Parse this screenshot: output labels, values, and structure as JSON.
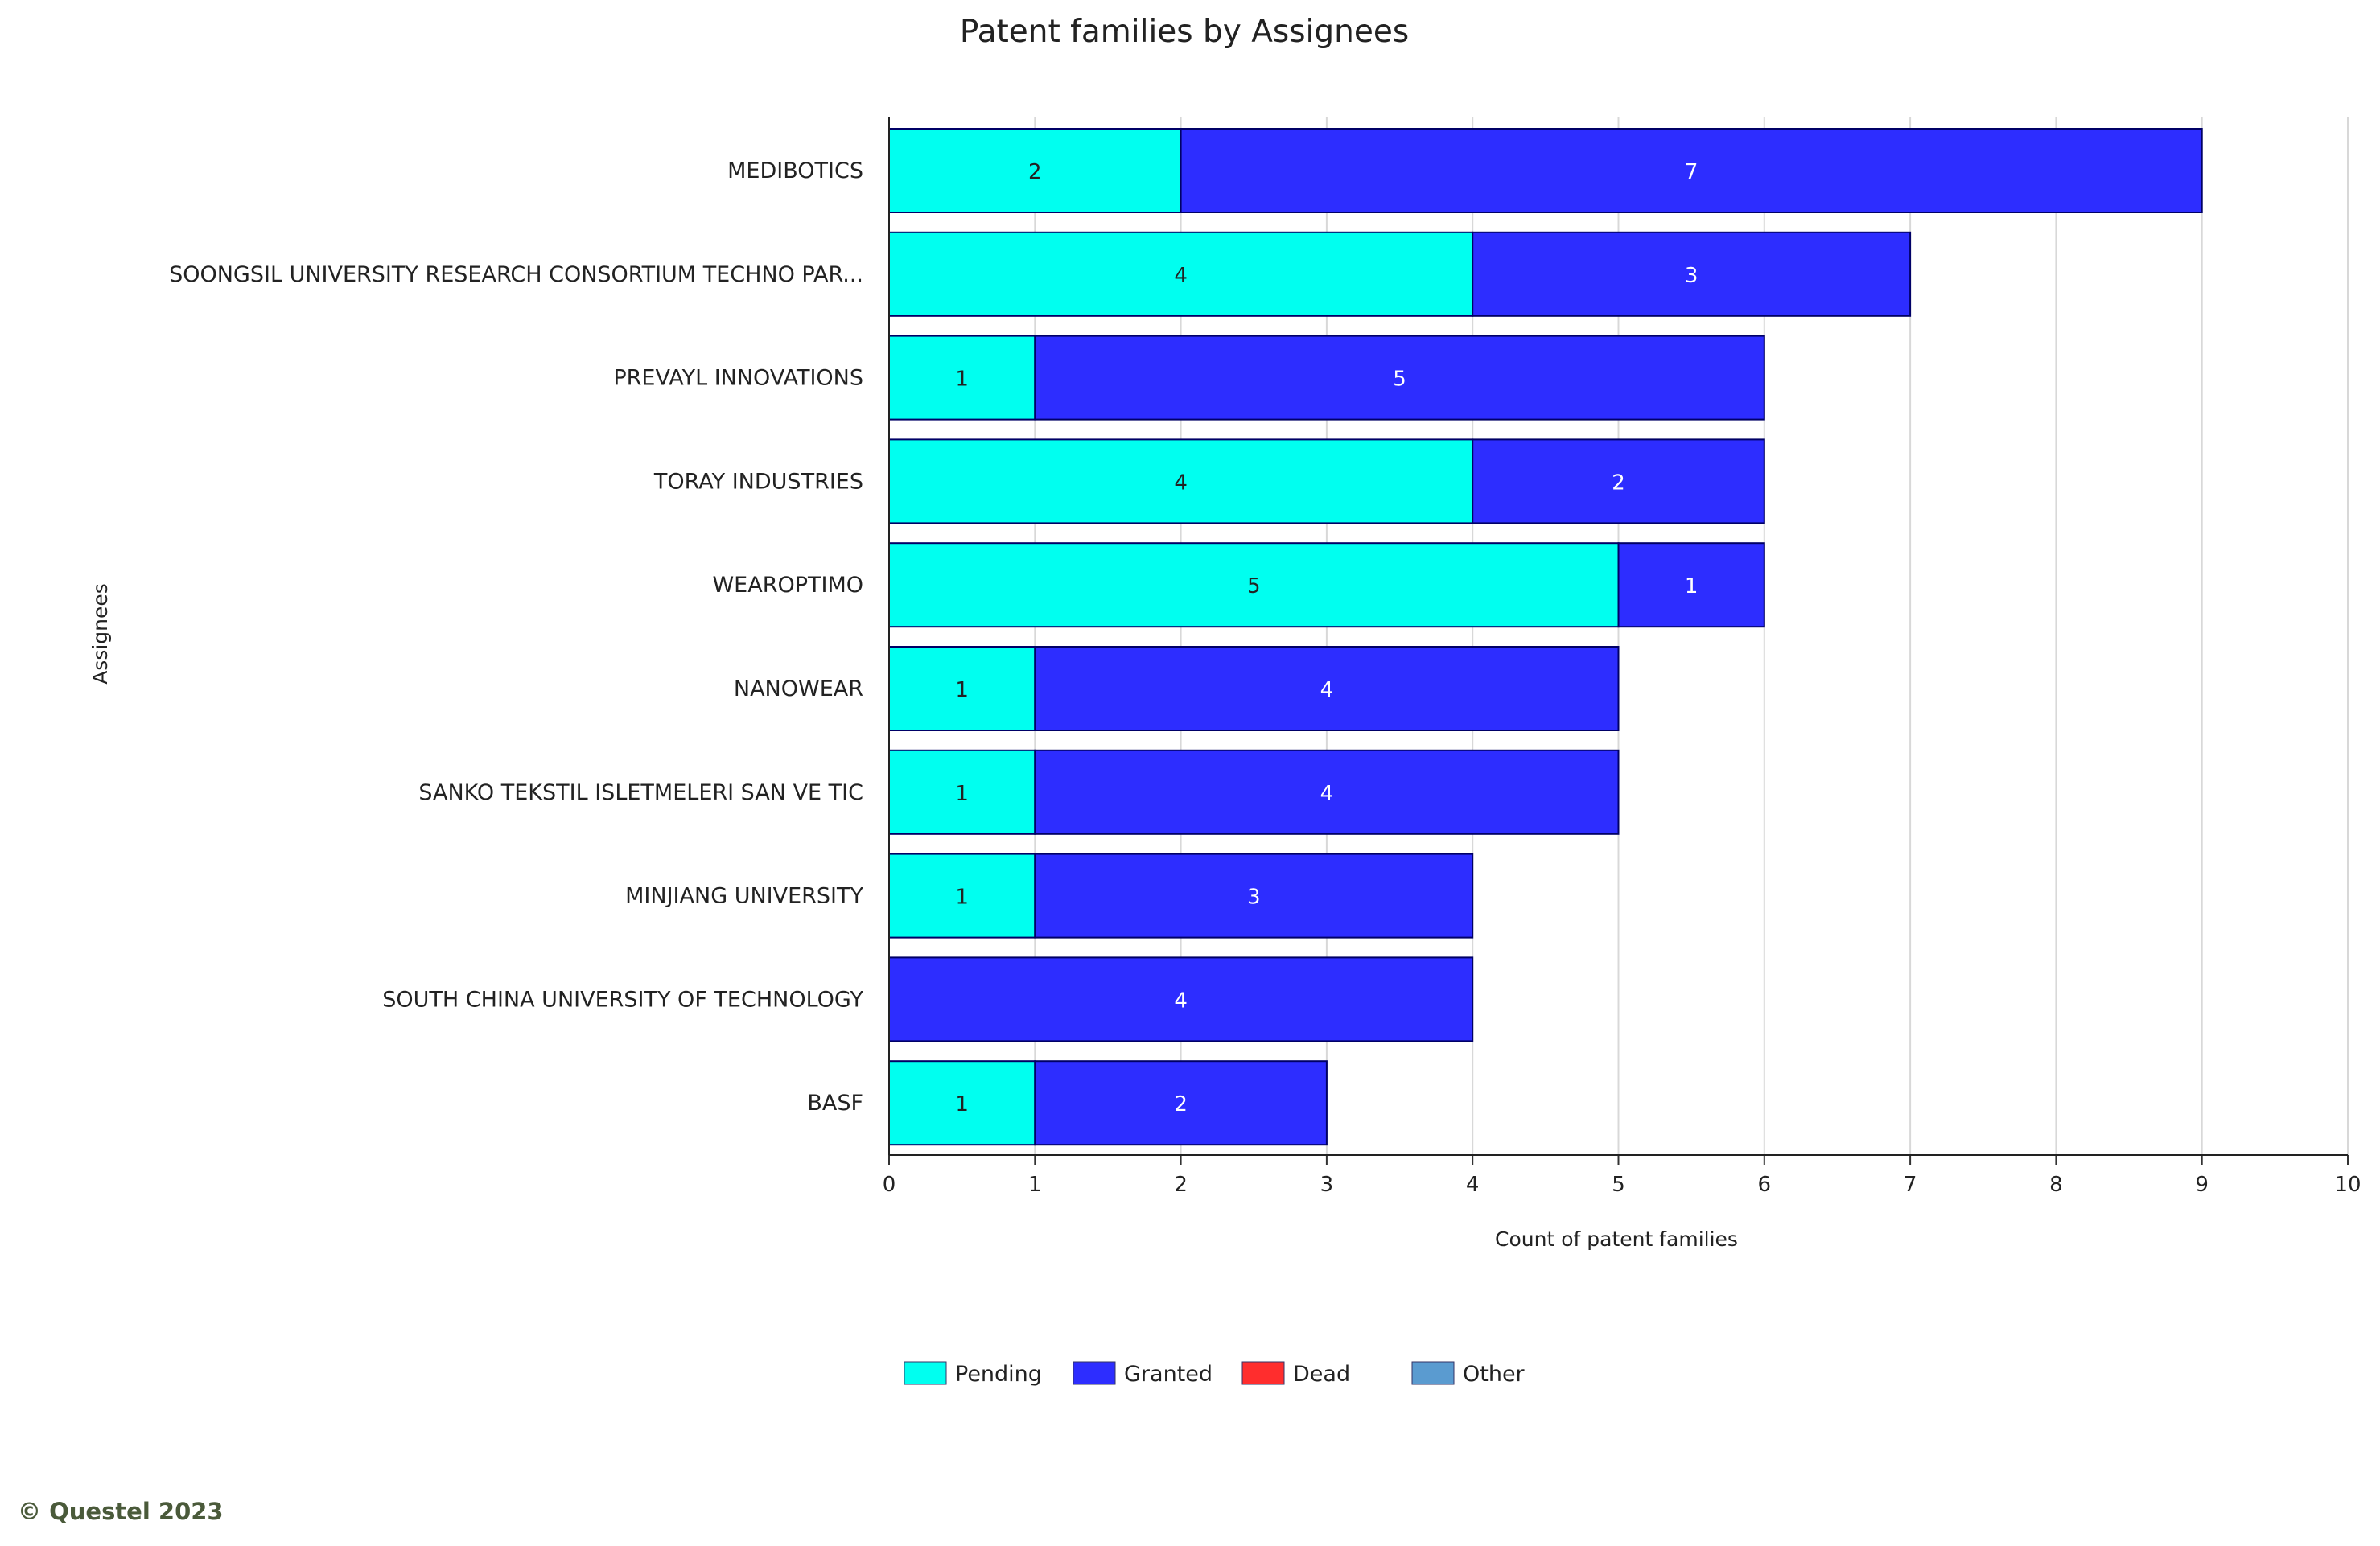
{
  "copyright": "© Questel 2023",
  "colors": {
    "pending": "#00fff0",
    "granted": "#2d2dff",
    "dead": "#ff2d2d",
    "other": "#5a9bd0"
  },
  "chart_data": {
    "type": "bar",
    "orientation": "horizontal",
    "stacked": true,
    "title": "Patent families by Assignees",
    "xlabel": "Count of patent families",
    "ylabel": "Assignees",
    "xlim": [
      0,
      10
    ],
    "xticks": [
      "0",
      "1",
      "2",
      "3",
      "4",
      "5",
      "6",
      "7",
      "8",
      "9",
      "10"
    ],
    "grid": "vertical",
    "legend_position": "bottom-center",
    "categories": [
      "MEDIBOTICS",
      "SOONGSIL UNIVERSITY RESEARCH CONSORTIUM TECHNO PAR...",
      "PREVAYL INNOVATIONS",
      "TORAY INDUSTRIES",
      "WEAROPTIMO",
      "NANOWEAR",
      "SANKO TEKSTIL ISLETMELERI SAN VE TIC",
      "MINJIANG UNIVERSITY",
      "SOUTH CHINA UNIVERSITY OF TECHNOLOGY",
      "BASF"
    ],
    "series": [
      {
        "name": "Pending",
        "color": "#00fff0",
        "values": [
          2,
          4,
          1,
          4,
          5,
          1,
          1,
          1,
          0,
          1
        ]
      },
      {
        "name": "Granted",
        "color": "#2d2dff",
        "values": [
          7,
          3,
          5,
          2,
          1,
          4,
          4,
          3,
          4,
          2
        ]
      },
      {
        "name": "Dead",
        "color": "#ff2d2d",
        "values": [
          0,
          0,
          0,
          0,
          0,
          0,
          0,
          0,
          0,
          0
        ]
      },
      {
        "name": "Other",
        "color": "#5a9bd0",
        "values": [
          0,
          0,
          0,
          0,
          0,
          0,
          0,
          0,
          0,
          0
        ]
      }
    ]
  }
}
